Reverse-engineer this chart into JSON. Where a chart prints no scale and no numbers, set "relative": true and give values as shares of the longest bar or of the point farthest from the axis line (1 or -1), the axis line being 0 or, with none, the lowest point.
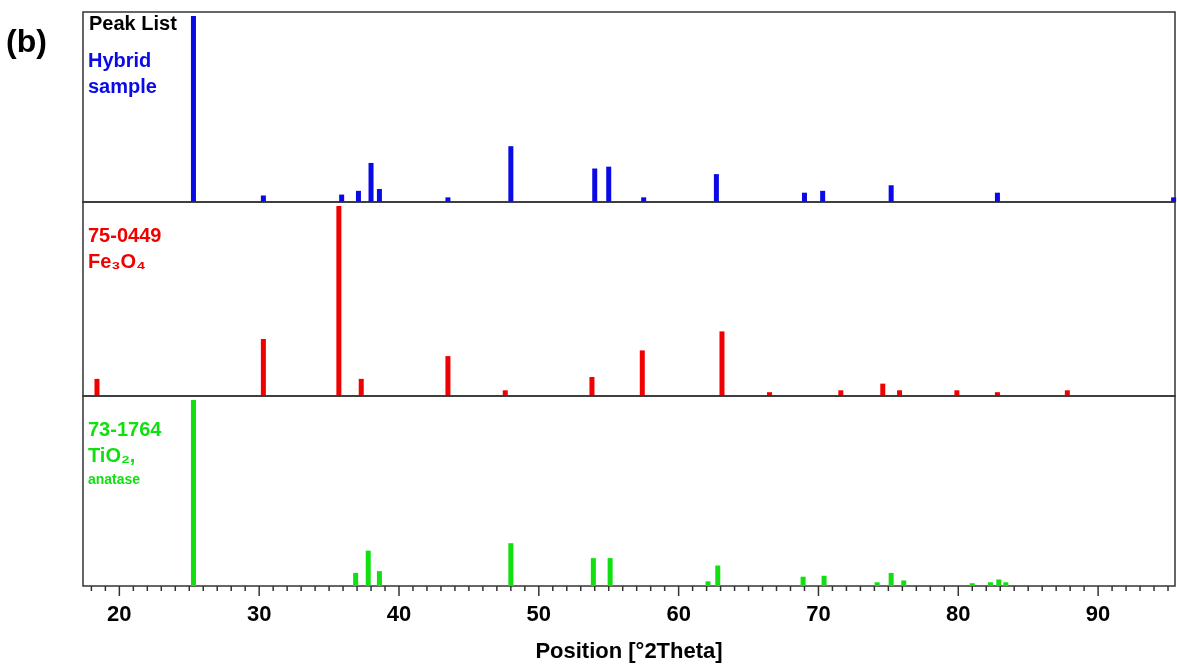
{
  "chart_data": [
    {
      "type": "bar",
      "title": "Peak List",
      "annotations": [
        "(b)"
      ],
      "relative": true,
      "tick_labels": false,
      "xlim": [
        17.4,
        95.5
      ],
      "x": [
        25.3,
        30.3,
        35.9,
        37.1,
        38.0,
        38.6,
        43.5,
        48.0,
        54.0,
        55.0,
        57.5,
        62.7,
        69.0,
        70.3,
        75.2,
        82.8,
        95.4
      ],
      "series": [
        {
          "name": "Hybrid\nsample",
          "color": "#0a0ae6",
          "values": [
            1.0,
            0.035,
            0.04,
            0.06,
            0.21,
            0.07,
            0.025,
            0.3,
            0.18,
            0.19,
            0.025,
            0.15,
            0.05,
            0.06,
            0.09,
            0.05,
            0.025
          ]
        }
      ]
    },
    {
      "type": "bar",
      "relative": true,
      "tick_labels": false,
      "xlim": [
        17.4,
        95.5
      ],
      "x": [
        18.4,
        30.3,
        35.7,
        37.3,
        43.5,
        47.6,
        53.8,
        57.4,
        63.1,
        66.5,
        71.6,
        74.6,
        75.8,
        79.9,
        82.8,
        87.8
      ],
      "series": [
        {
          "name": "75-0449\nFe₃O₄",
          "color": "#f00000",
          "values": [
            0.09,
            0.3,
            1.0,
            0.09,
            0.21,
            0.03,
            0.1,
            0.24,
            0.34,
            0.02,
            0.03,
            0.065,
            0.03,
            0.03,
            0.02,
            0.03
          ]
        }
      ]
    },
    {
      "type": "bar",
      "relative": true,
      "tick_labels": "x",
      "xlim": [
        17.4,
        95.5
      ],
      "xlabel": "Position [°2Theta]",
      "xticks": [
        {
          "value": 18,
          "label": null
        },
        {
          "value": 19,
          "label": null
        },
        20,
        {
          "value": 21,
          "label": null
        },
        {
          "value": 22,
          "label": null
        },
        {
          "value": 23,
          "label": null
        },
        {
          "value": 24,
          "label": null
        },
        {
          "value": 25,
          "label": null
        },
        {
          "value": 26,
          "label": null
        },
        {
          "value": 27,
          "label": null
        },
        {
          "value": 28,
          "label": null
        },
        {
          "value": 29,
          "label": null
        },
        30,
        {
          "value": 31,
          "label": null
        },
        {
          "value": 32,
          "label": null
        },
        {
          "value": 33,
          "label": null
        },
        {
          "value": 34,
          "label": null
        },
        {
          "value": 35,
          "label": null
        },
        {
          "value": 36,
          "label": null
        },
        {
          "value": 37,
          "label": null
        },
        {
          "value": 38,
          "label": null
        },
        {
          "value": 39,
          "label": null
        },
        40,
        {
          "value": 41,
          "label": null
        },
        {
          "value": 42,
          "label": null
        },
        {
          "value": 43,
          "label": null
        },
        {
          "value": 44,
          "label": null
        },
        {
          "value": 45,
          "label": null
        },
        {
          "value": 46,
          "label": null
        },
        {
          "value": 47,
          "label": null
        },
        {
          "value": 48,
          "label": null
        },
        {
          "value": 49,
          "label": null
        },
        50,
        {
          "value": 51,
          "label": null
        },
        {
          "value": 52,
          "label": null
        },
        {
          "value": 53,
          "label": null
        },
        {
          "value": 54,
          "label": null
        },
        {
          "value": 55,
          "label": null
        },
        {
          "value": 56,
          "label": null
        },
        {
          "value": 57,
          "label": null
        },
        {
          "value": 58,
          "label": null
        },
        {
          "value": 59,
          "label": null
        },
        60,
        {
          "value": 61,
          "label": null
        },
        {
          "value": 62,
          "label": null
        },
        {
          "value": 63,
          "label": null
        },
        {
          "value": 64,
          "label": null
        },
        {
          "value": 65,
          "label": null
        },
        {
          "value": 66,
          "label": null
        },
        {
          "value": 67,
          "label": null
        },
        {
          "value": 68,
          "label": null
        },
        {
          "value": 69,
          "label": null
        },
        70,
        {
          "value": 71,
          "label": null
        },
        {
          "value": 72,
          "label": null
        },
        {
          "value": 73,
          "label": null
        },
        {
          "value": 74,
          "label": null
        },
        {
          "value": 75,
          "label": null
        },
        {
          "value": 76,
          "label": null
        },
        {
          "value": 77,
          "label": null
        },
        {
          "value": 78,
          "label": null
        },
        {
          "value": 79,
          "label": null
        },
        80,
        {
          "value": 81,
          "label": null
        },
        {
          "value": 82,
          "label": null
        },
        {
          "value": 83,
          "label": null
        },
        {
          "value": 84,
          "label": null
        },
        {
          "value": 85,
          "label": null
        },
        {
          "value": 86,
          "label": null
        },
        {
          "value": 87,
          "label": null
        },
        {
          "value": 88,
          "label": null
        },
        {
          "value": 89,
          "label": null
        },
        90,
        {
          "value": 91,
          "label": null
        },
        {
          "value": 92,
          "label": null
        },
        {
          "value": 93,
          "label": null
        },
        {
          "value": 94,
          "label": null
        },
        {
          "value": 95,
          "label": null
        }
      ],
      "x": [
        25.3,
        36.9,
        37.8,
        38.6,
        48.0,
        53.9,
        55.1,
        62.1,
        62.8,
        68.9,
        70.4,
        74.2,
        75.2,
        76.1,
        81.0,
        82.3,
        82.9,
        83.4
      ],
      "series": [
        {
          "name": "73-1764\nTiO₂,\nanatase",
          "color": "#10e010",
          "values": [
            1.0,
            0.07,
            0.19,
            0.08,
            0.23,
            0.15,
            0.15,
            0.025,
            0.11,
            0.05,
            0.055,
            0.02,
            0.07,
            0.03,
            0.015,
            0.02,
            0.035,
            0.02
          ]
        }
      ]
    }
  ]
}
